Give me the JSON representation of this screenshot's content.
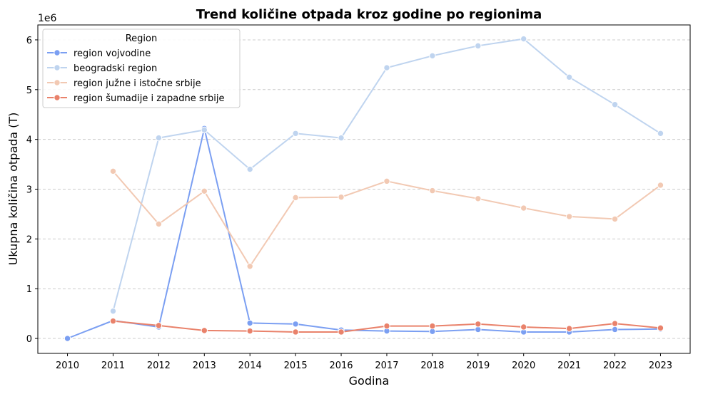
{
  "chart_data": {
    "type": "line",
    "title": "Trend količine otpada kroz godine po regionima",
    "xlabel": "Godina",
    "ylabel": "Ukupna količina otpada (T)",
    "offset_text": "1e6",
    "x": [
      2010,
      2011,
      2012,
      2013,
      2014,
      2015,
      2016,
      2017,
      2018,
      2019,
      2020,
      2021,
      2022,
      2023
    ],
    "x_ticks": [
      "2010",
      "2011",
      "2012",
      "2013",
      "2014",
      "2015",
      "2016",
      "2017",
      "2018",
      "2019",
      "2020",
      "2021",
      "2022",
      "2023"
    ],
    "y_ticks": [
      0,
      1,
      2,
      3,
      4,
      5,
      6
    ],
    "y_tick_labels": [
      "0",
      "1",
      "2",
      "3",
      "4",
      "5",
      "6"
    ],
    "ylim": [
      -0.3,
      6.3
    ],
    "xlim": [
      2009.35,
      2023.65
    ],
    "grid": "horizontal dashed",
    "legend": {
      "title": "Region",
      "position": "top-left"
    },
    "series": [
      {
        "name": "region vojvodine",
        "color": "#7b9ff2",
        "x": [
          2010,
          2011,
          2012,
          2013,
          2014,
          2015,
          2016,
          2017,
          2018,
          2019,
          2020,
          2021,
          2022,
          2023
        ],
        "values": [
          0.0,
          0.36,
          0.23,
          4.22,
          0.31,
          0.29,
          0.17,
          0.15,
          0.14,
          0.18,
          0.13,
          0.13,
          0.18,
          0.19
        ]
      },
      {
        "name": "beogradski region",
        "color": "#bfd4ef",
        "x": [
          2011,
          2012,
          2013,
          2014,
          2015,
          2016,
          2017,
          2018,
          2019,
          2020,
          2021,
          2022,
          2023
        ],
        "values": [
          0.55,
          4.03,
          4.19,
          3.4,
          4.12,
          4.03,
          5.44,
          5.68,
          5.88,
          6.02,
          5.25,
          4.7,
          4.12
        ]
      },
      {
        "name": "region južne i istočne srbije",
        "color": "#f2c9b3",
        "x": [
          2011,
          2012,
          2013,
          2014,
          2015,
          2016,
          2017,
          2018,
          2019,
          2020,
          2021,
          2022,
          2023
        ],
        "values": [
          3.36,
          2.3,
          2.96,
          1.45,
          2.83,
          2.84,
          3.16,
          2.97,
          2.81,
          2.62,
          2.45,
          2.4,
          3.08
        ]
      },
      {
        "name": "region šumadije i zapadne srbije",
        "color": "#e9826b",
        "x": [
          2011,
          2012,
          2013,
          2014,
          2015,
          2016,
          2017,
          2018,
          2019,
          2020,
          2021,
          2022,
          2023
        ],
        "values": [
          0.35,
          0.26,
          0.16,
          0.15,
          0.13,
          0.13,
          0.25,
          0.25,
          0.29,
          0.23,
          0.2,
          0.3,
          0.21
        ]
      }
    ]
  }
}
